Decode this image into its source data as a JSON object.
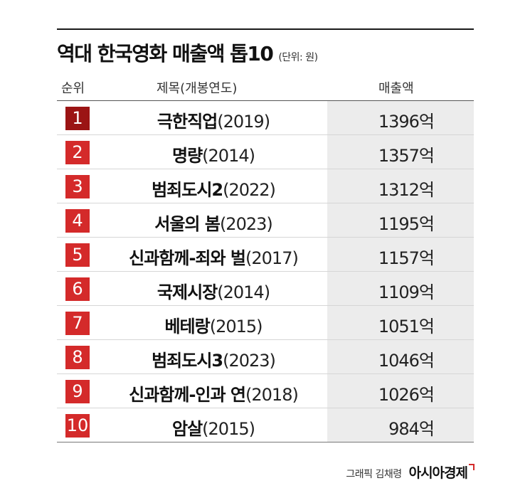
{
  "header": {
    "title": "역대 한국영화 매출액 톱10",
    "unit": "(단위: 원)",
    "col_rank": "순위",
    "col_title": "제목(개봉연도)",
    "col_revenue": "매출액"
  },
  "colors": {
    "rank1": "#9b1414",
    "rank_default": "#d42a2a",
    "revenue_background": "#ececec"
  },
  "chart_data": {
    "type": "table",
    "title": "역대 한국영화 매출액 톱10",
    "unit": "(단위: 원)",
    "columns": [
      "순위",
      "제목(개봉연도)",
      "매출액"
    ],
    "rows": [
      {
        "rank": "1",
        "name": "극한직업",
        "year": "(2019)",
        "revenue": "1396억",
        "value": 1396
      },
      {
        "rank": "2",
        "name": "명량",
        "year": "(2014)",
        "revenue": "1357억",
        "value": 1357
      },
      {
        "rank": "3",
        "name": "범죄도시2",
        "year": "(2022)",
        "revenue": "1312억",
        "value": 1312
      },
      {
        "rank": "4",
        "name": "서울의 봄",
        "year": "(2023)",
        "revenue": "1195억",
        "value": 1195
      },
      {
        "rank": "5",
        "name": "신과함께-죄와 벌",
        "year": "(2017)",
        "revenue": "1157억",
        "value": 1157
      },
      {
        "rank": "6",
        "name": "국제시장",
        "year": "(2014)",
        "revenue": "1109억",
        "value": 1109
      },
      {
        "rank": "7",
        "name": "베테랑",
        "year": "(2015)",
        "revenue": "1051억",
        "value": 1051
      },
      {
        "rank": "8",
        "name": "범죄도시3",
        "year": "(2023)",
        "revenue": "1046억",
        "value": 1046
      },
      {
        "rank": "9",
        "name": "신과함께-인과 연",
        "year": "(2018)",
        "revenue": "1026억",
        "value": 1026
      },
      {
        "rank": "10",
        "name": "암살",
        "year": "(2015)",
        "revenue": "984억",
        "value": 984
      }
    ]
  },
  "footer": {
    "credit": "그래픽 김채령",
    "logo": "아시아경제"
  }
}
